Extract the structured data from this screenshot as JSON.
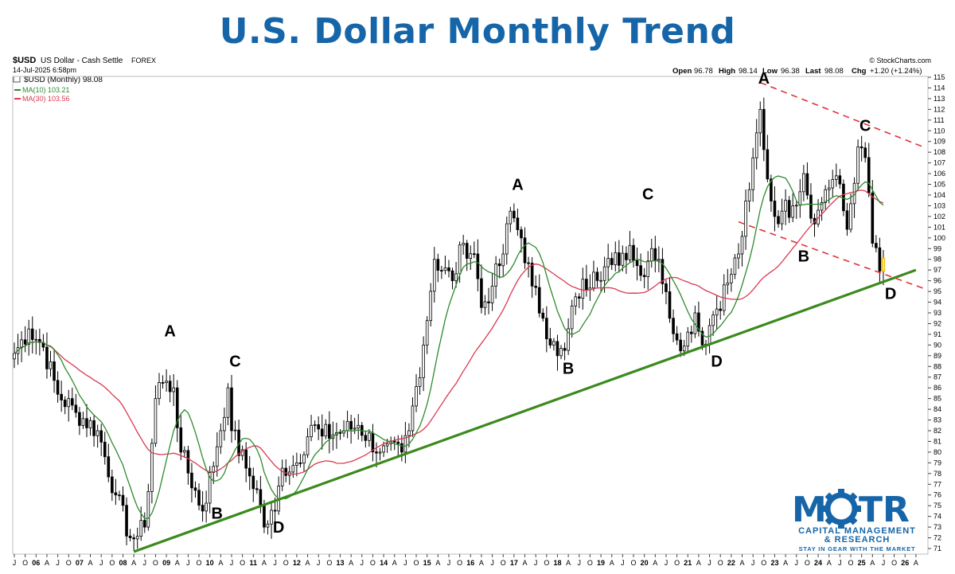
{
  "page": {
    "title": "U.S. Dollar Monthly Trend"
  },
  "header": {
    "symbol": "$USD",
    "name": "US Dollar - Cash Settle",
    "exchange": "FOREX",
    "datetime": "14-Jul-2025 6:58pm",
    "series_label": "$USD (Monthly) 98.08",
    "ma10_label": "MA(10) 103.21",
    "ma30_label": "MA(30) 103.56",
    "watermark": "© StockCharts.com",
    "ohlc": {
      "open": "96.78",
      "high": "98.14",
      "low": "96.38",
      "last": "98.08",
      "chg": "+1.20 (+1.24%)"
    }
  },
  "colors": {
    "title": "#1565a8",
    "ma10": "#2e8b2e",
    "ma30": "#d93a50",
    "trendline": "#3a8a1e",
    "channel": "#e0313a",
    "candle": "#000000",
    "highlight": "#f2c10f"
  },
  "logo": {
    "text": "MOTR",
    "line1": "CAPITAL MANAGEMENT",
    "line2": "& RESEARCH",
    "tagline": "STAY IN GEAR WITH THE MARKET"
  },
  "chart_data": {
    "type": "candlestick",
    "title": "U.S. Dollar Monthly Trend",
    "x_range": [
      "2005-07",
      "2026-06"
    ],
    "ylim": [
      71,
      115
    ],
    "y_ticks": [
      71,
      72,
      73,
      74,
      75,
      76,
      77,
      78,
      79,
      80,
      81,
      82,
      83,
      84,
      85,
      86,
      87,
      88,
      89,
      90,
      91,
      92,
      93,
      94,
      95,
      96,
      97,
      98,
      99,
      100,
      101,
      102,
      103,
      104,
      105,
      106,
      107,
      108,
      109,
      110,
      111,
      112,
      113,
      114,
      115
    ],
    "x_tick_labels": [
      "J",
      "O",
      "06",
      "A",
      "J",
      "O",
      "07",
      "A",
      "J",
      "O",
      "08",
      "A",
      "J",
      "O",
      "09",
      "A",
      "J",
      "O",
      "10",
      "A",
      "J",
      "O",
      "11",
      "A",
      "J",
      "O",
      "12",
      "A",
      "J",
      "O",
      "13",
      "A",
      "J",
      "O",
      "14",
      "A",
      "J",
      "O",
      "15",
      "A",
      "J",
      "O",
      "16",
      "A",
      "J",
      "O",
      "17",
      "A",
      "J",
      "O",
      "18",
      "A",
      "J",
      "O",
      "19",
      "A",
      "J",
      "O",
      "20",
      "A",
      "J",
      "O",
      "21",
      "A",
      "J",
      "O",
      "22",
      "A",
      "J",
      "O",
      "23",
      "A",
      "J",
      "O",
      "24",
      "A",
      "J",
      "O",
      "25",
      "A",
      "J",
      "O",
      "26",
      "A"
    ],
    "price_anchors": [
      [
        "2005-07",
        89.2
      ],
      [
        "2005-11",
        91.5
      ],
      [
        "2006-03",
        89.8
      ],
      [
        "2006-07",
        85.4
      ],
      [
        "2006-12",
        83.7
      ],
      [
        "2007-06",
        82.0
      ],
      [
        "2007-11",
        76.0
      ],
      [
        "2008-03",
        72.0
      ],
      [
        "2008-04",
        71.9
      ],
      [
        "2008-07",
        73.0
      ],
      [
        "2008-10",
        85.0
      ],
      [
        "2008-11",
        86.5
      ],
      [
        "2009-03",
        86.0
      ],
      [
        "2009-05",
        80.0
      ],
      [
        "2009-11",
        74.5
      ],
      [
        "2010-03",
        80.5
      ],
      [
        "2010-06",
        86.0
      ],
      [
        "2010-07",
        82.0
      ],
      [
        "2010-11",
        78.5
      ],
      [
        "2011-02",
        76.5
      ],
      [
        "2011-04",
        73.0
      ],
      [
        "2011-07",
        74.5
      ],
      [
        "2011-09",
        78.5
      ],
      [
        "2012-01",
        79.0
      ],
      [
        "2012-05",
        82.5
      ],
      [
        "2012-08",
        81.5
      ],
      [
        "2013-02",
        82.0
      ],
      [
        "2013-06",
        82.5
      ],
      [
        "2013-12",
        80.0
      ],
      [
        "2014-06",
        80.0
      ],
      [
        "2014-08",
        82.0
      ],
      [
        "2014-12",
        90.0
      ],
      [
        "2015-03",
        98.0
      ],
      [
        "2015-08",
        96.0
      ],
      [
        "2015-11",
        99.5
      ],
      [
        "2016-02",
        98.5
      ],
      [
        "2016-04",
        93.5
      ],
      [
        "2016-07",
        95.5
      ],
      [
        "2016-10",
        98.5
      ],
      [
        "2016-12",
        102.5
      ],
      [
        "2017-03",
        100.0
      ],
      [
        "2017-06",
        95.5
      ],
      [
        "2017-09",
        92.5
      ],
      [
        "2018-01",
        89.0
      ],
      [
        "2018-03",
        89.5
      ],
      [
        "2018-06",
        94.5
      ],
      [
        "2018-11",
        96.8
      ],
      [
        "2019-04",
        97.5
      ],
      [
        "2019-09",
        99.3
      ],
      [
        "2019-12",
        96.5
      ],
      [
        "2020-03",
        99.0
      ],
      [
        "2020-05",
        98.0
      ],
      [
        "2020-08",
        92.5
      ],
      [
        "2020-12",
        89.9
      ],
      [
        "2021-03",
        93.0
      ],
      [
        "2021-05",
        90.0
      ],
      [
        "2021-08",
        92.8
      ],
      [
        "2021-12",
        95.8
      ],
      [
        "2022-03",
        98.5
      ],
      [
        "2022-06",
        104.5
      ],
      [
        "2022-09",
        112.0
      ],
      [
        "2022-11",
        105.5
      ],
      [
        "2023-01",
        102.0
      ],
      [
        "2023-03",
        102.5
      ],
      [
        "2023-06",
        103.0
      ],
      [
        "2023-09",
        106.0
      ],
      [
        "2023-12",
        101.3
      ],
      [
        "2024-03",
        104.5
      ],
      [
        "2024-06",
        105.8
      ],
      [
        "2024-09",
        100.8
      ],
      [
        "2024-12",
        108.5
      ],
      [
        "2025-01",
        108.4
      ],
      [
        "2025-02",
        107.5
      ],
      [
        "2025-03",
        104.2
      ],
      [
        "2025-04",
        99.5
      ],
      [
        "2025-06",
        96.9
      ],
      [
        "2025-07",
        98.1
      ]
    ],
    "moving_averages": [
      {
        "name": "MA(10)",
        "value": 103.21
      },
      {
        "name": "MA(30)",
        "value": 103.56
      }
    ],
    "trendlines": [
      {
        "type": "support",
        "from": [
          "2008-04",
          70.7
        ],
        "to": [
          "2026-04",
          97.0
        ]
      },
      {
        "type": "channel-top",
        "from": [
          "2022-09",
          114.5
        ],
        "to": [
          "2026-06",
          108.5
        ]
      },
      {
        "type": "channel-bottom",
        "from": [
          "2022-03",
          101.5
        ],
        "to": [
          "2026-06",
          95.3
        ]
      }
    ],
    "annotations": [
      {
        "text": "A",
        "at": [
          "2009-02",
          90.8
        ]
      },
      {
        "text": "B",
        "at": [
          "2010-03",
          73.8
        ]
      },
      {
        "text": "C",
        "at": [
          "2010-08",
          88.0
        ]
      },
      {
        "text": "D",
        "at": [
          "2011-08",
          72.5
        ]
      },
      {
        "text": "A",
        "at": [
          "2017-02",
          104.5
        ]
      },
      {
        "text": "B",
        "at": [
          "2018-04",
          87.3
        ]
      },
      {
        "text": "C",
        "at": [
          "2020-02",
          103.6
        ]
      },
      {
        "text": "D",
        "at": [
          "2021-09",
          88.0
        ]
      },
      {
        "text": "A",
        "at": [
          "2022-10",
          114.4
        ]
      },
      {
        "text": "B",
        "at": [
          "2023-09",
          97.8
        ]
      },
      {
        "text": "C",
        "at": [
          "2025-02",
          110.0
        ]
      },
      {
        "text": "D",
        "at": [
          "2025-09",
          94.3
        ]
      }
    ]
  }
}
